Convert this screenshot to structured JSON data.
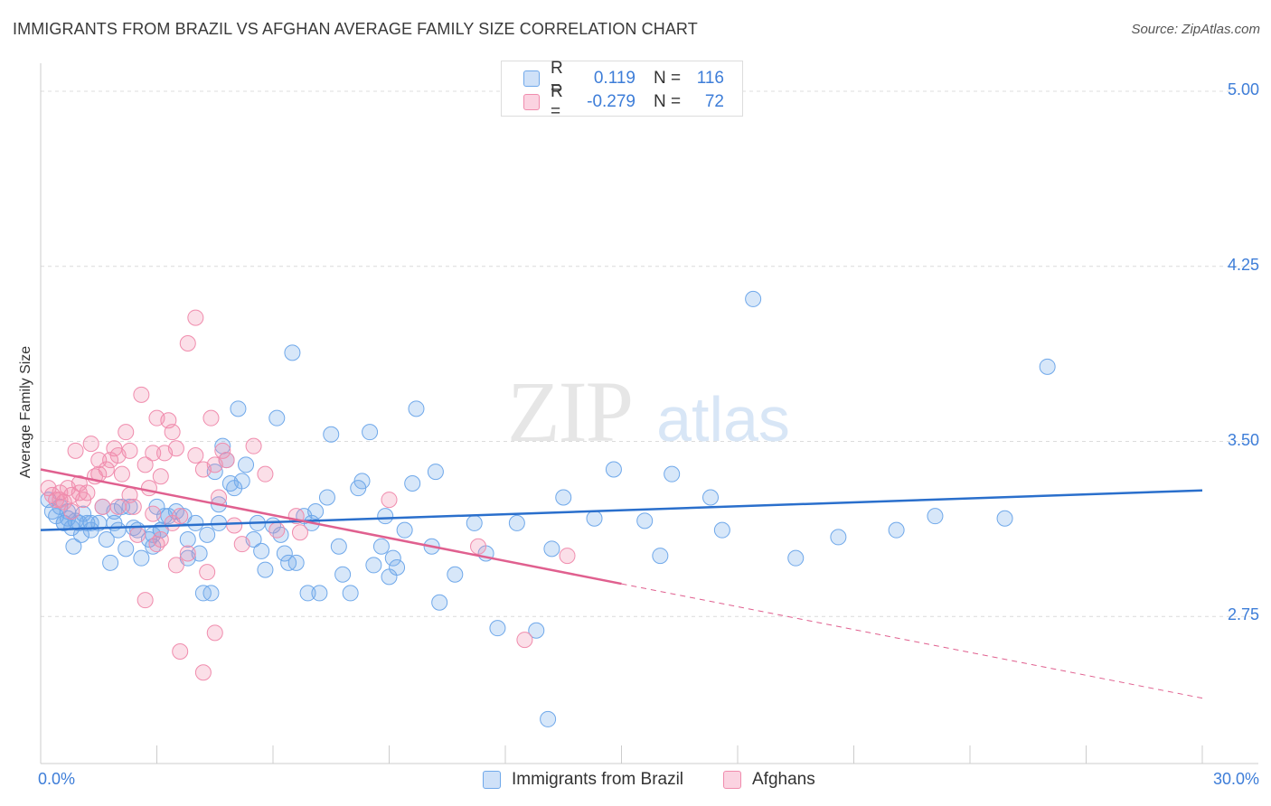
{
  "title": "IMMIGRANTS FROM BRAZIL VS AFGHAN AVERAGE FAMILY SIZE CORRELATION CHART",
  "source": "Source: ZipAtlas.com",
  "watermark": {
    "zip": "ZIP",
    "atlas": "atlas"
  },
  "legend_stats": [
    {
      "r_label": "R =",
      "r_value": "0.119",
      "n_label": "N =",
      "n_value": "116",
      "color": "#6fa8ea"
    },
    {
      "r_label": "R =",
      "r_value": "-0.279",
      "n_label": "N =",
      "n_value": "72",
      "color": "#f08cad"
    }
  ],
  "legend_series": [
    {
      "label": "Immigrants from Brazil",
      "color": "#6fa8ea"
    },
    {
      "label": "Afghans",
      "color": "#f08cad"
    }
  ],
  "chart_data": {
    "type": "scatter",
    "title": "IMMIGRANTS FROM BRAZIL VS AFGHAN AVERAGE FAMILY SIZE CORRELATION CHART",
    "ylabel": "Average Family Size",
    "xlabel": "",
    "xlim": [
      0,
      30
    ],
    "ylim": [
      2.12,
      5.12
    ],
    "x_tick_labels": [
      "0.0%",
      "30.0%"
    ],
    "y_ticks": [
      2.75,
      3.5,
      4.25,
      5.0
    ],
    "y_tick_labels": [
      "2.75",
      "3.50",
      "4.25",
      "5.00"
    ],
    "grid": true,
    "legend_placement": "bottom",
    "series": [
      {
        "name": "Immigrants from Brazil",
        "color": "#6fa8ea",
        "line_color": "#2a6fcc",
        "trend": {
          "x": [
            0,
            30
          ],
          "y": [
            3.12,
            3.29
          ]
        },
        "points": [
          [
            0.2,
            3.25
          ],
          [
            0.3,
            3.2
          ],
          [
            0.4,
            3.18
          ],
          [
            0.5,
            3.22
          ],
          [
            0.6,
            3.15
          ],
          [
            0.7,
            3.2
          ],
          [
            0.8,
            3.13
          ],
          [
            0.9,
            3.16
          ],
          [
            1.0,
            3.15
          ],
          [
            0.85,
            3.05
          ],
          [
            1.05,
            3.1
          ],
          [
            1.2,
            3.15
          ],
          [
            1.3,
            3.12
          ],
          [
            1.5,
            3.15
          ],
          [
            1.6,
            3.22
          ],
          [
            1.7,
            3.08
          ],
          [
            1.8,
            2.98
          ],
          [
            1.9,
            3.2
          ],
          [
            1.9,
            3.15
          ],
          [
            2.0,
            3.12
          ],
          [
            2.1,
            3.22
          ],
          [
            2.2,
            3.04
          ],
          [
            2.3,
            3.22
          ],
          [
            2.5,
            3.12
          ],
          [
            2.6,
            3.0
          ],
          [
            2.8,
            3.08
          ],
          [
            2.9,
            3.05
          ],
          [
            2.9,
            3.1
          ],
          [
            3.0,
            3.22
          ],
          [
            3.1,
            3.12
          ],
          [
            3.3,
            3.18
          ],
          [
            3.5,
            3.2
          ],
          [
            3.7,
            3.18
          ],
          [
            3.8,
            3.08
          ],
          [
            3.8,
            3.0
          ],
          [
            4.0,
            3.15
          ],
          [
            4.1,
            3.02
          ],
          [
            4.2,
            2.85
          ],
          [
            4.3,
            3.1
          ],
          [
            4.4,
            2.85
          ],
          [
            4.5,
            3.37
          ],
          [
            4.6,
            3.15
          ],
          [
            4.7,
            3.48
          ],
          [
            4.8,
            3.42
          ],
          [
            4.9,
            3.32
          ],
          [
            5.0,
            3.3
          ],
          [
            5.1,
            3.64
          ],
          [
            5.2,
            3.33
          ],
          [
            5.3,
            3.4
          ],
          [
            5.5,
            3.08
          ],
          [
            5.6,
            3.15
          ],
          [
            5.8,
            2.95
          ],
          [
            6.0,
            3.14
          ],
          [
            6.1,
            3.6
          ],
          [
            6.2,
            3.1
          ],
          [
            6.3,
            3.02
          ],
          [
            6.4,
            2.98
          ],
          [
            6.6,
            2.98
          ],
          [
            6.8,
            3.18
          ],
          [
            6.9,
            2.85
          ],
          [
            7.0,
            3.15
          ],
          [
            7.2,
            2.85
          ],
          [
            7.4,
            3.26
          ],
          [
            7.5,
            3.53
          ],
          [
            7.7,
            3.05
          ],
          [
            7.8,
            2.93
          ],
          [
            8.0,
            2.85
          ],
          [
            8.2,
            3.3
          ],
          [
            8.3,
            3.33
          ],
          [
            8.5,
            3.54
          ],
          [
            8.6,
            2.97
          ],
          [
            8.8,
            3.05
          ],
          [
            9.0,
            2.92
          ],
          [
            9.2,
            2.96
          ],
          [
            9.4,
            3.12
          ],
          [
            9.6,
            3.32
          ],
          [
            9.7,
            3.64
          ],
          [
            10.1,
            3.05
          ],
          [
            10.2,
            3.37
          ],
          [
            10.3,
            2.81
          ],
          [
            10.7,
            2.93
          ],
          [
            11.2,
            3.15
          ],
          [
            11.5,
            3.02
          ],
          [
            11.8,
            2.7
          ],
          [
            12.3,
            3.15
          ],
          [
            12.8,
            2.69
          ],
          [
            13.2,
            3.04
          ],
          [
            13.5,
            3.26
          ],
          [
            14.3,
            3.17
          ],
          [
            14.8,
            3.38
          ],
          [
            15.6,
            3.16
          ],
          [
            16.0,
            3.01
          ],
          [
            16.3,
            3.36
          ],
          [
            17.3,
            3.26
          ],
          [
            17.6,
            3.12
          ],
          [
            18.4,
            4.11
          ],
          [
            19.5,
            3.0
          ],
          [
            20.6,
            3.09
          ],
          [
            22.1,
            3.12
          ],
          [
            23.1,
            3.18
          ],
          [
            26.0,
            3.82
          ],
          [
            24.9,
            3.17
          ],
          [
            6.5,
            3.88
          ],
          [
            3.1,
            3.12
          ],
          [
            4.6,
            3.23
          ],
          [
            2.4,
            3.13
          ],
          [
            1.3,
            3.15
          ],
          [
            0.7,
            3.17
          ],
          [
            5.7,
            3.03
          ],
          [
            7.1,
            3.2
          ],
          [
            9.1,
            3.0
          ],
          [
            13.1,
            2.31
          ],
          [
            3.2,
            3.18
          ],
          [
            1.1,
            3.19
          ],
          [
            0.6,
            3.15
          ],
          [
            8.9,
            3.18
          ]
        ]
      },
      {
        "name": "Afghans",
        "color": "#f08cad",
        "line_color": "#e0608f",
        "trend": {
          "x": [
            0,
            15
          ],
          "y": [
            3.38,
            2.89
          ]
        },
        "trend_dashed": {
          "x": [
            15,
            30
          ],
          "y": [
            2.89,
            2.4
          ]
        },
        "points": [
          [
            0.2,
            3.3
          ],
          [
            0.3,
            3.27
          ],
          [
            0.4,
            3.25
          ],
          [
            0.5,
            3.28
          ],
          [
            0.6,
            3.24
          ],
          [
            0.7,
            3.3
          ],
          [
            0.8,
            3.27
          ],
          [
            0.9,
            3.46
          ],
          [
            1.0,
            3.28
          ],
          [
            1.1,
            3.25
          ],
          [
            1.2,
            3.28
          ],
          [
            1.3,
            3.49
          ],
          [
            1.4,
            3.35
          ],
          [
            1.5,
            3.42
          ],
          [
            1.6,
            3.22
          ],
          [
            1.8,
            3.42
          ],
          [
            1.9,
            3.47
          ],
          [
            2.0,
            3.44
          ],
          [
            2.1,
            3.36
          ],
          [
            2.2,
            3.54
          ],
          [
            2.3,
            3.46
          ],
          [
            2.4,
            3.22
          ],
          [
            2.5,
            3.1
          ],
          [
            2.6,
            3.7
          ],
          [
            2.7,
            3.4
          ],
          [
            2.8,
            3.3
          ],
          [
            2.9,
            3.45
          ],
          [
            3.0,
            3.6
          ],
          [
            3.1,
            3.35
          ],
          [
            3.2,
            3.45
          ],
          [
            3.3,
            3.59
          ],
          [
            3.4,
            3.54
          ],
          [
            3.5,
            3.47
          ],
          [
            3.6,
            3.18
          ],
          [
            3.8,
            3.92
          ],
          [
            4.0,
            3.44
          ],
          [
            4.2,
            3.38
          ],
          [
            4.4,
            3.6
          ],
          [
            4.5,
            3.4
          ],
          [
            4.6,
            3.26
          ],
          [
            4.7,
            3.46
          ],
          [
            5.0,
            3.14
          ],
          [
            5.2,
            3.06
          ],
          [
            5.5,
            3.48
          ],
          [
            5.8,
            3.36
          ],
          [
            6.1,
            3.12
          ],
          [
            6.6,
            3.18
          ],
          [
            6.7,
            3.11
          ],
          [
            2.7,
            2.82
          ],
          [
            3.0,
            3.06
          ],
          [
            3.6,
            2.6
          ],
          [
            4.2,
            2.51
          ],
          [
            4.3,
            2.94
          ],
          [
            4.5,
            2.68
          ],
          [
            4.0,
            4.03
          ],
          [
            3.5,
            2.97
          ],
          [
            9.0,
            3.25
          ],
          [
            12.5,
            2.65
          ],
          [
            11.3,
            3.05
          ],
          [
            13.6,
            3.01
          ],
          [
            0.5,
            3.25
          ],
          [
            1.0,
            3.32
          ],
          [
            1.7,
            3.38
          ],
          [
            2.3,
            3.27
          ],
          [
            3.1,
            3.08
          ],
          [
            3.8,
            3.02
          ],
          [
            0.8,
            3.2
          ],
          [
            1.5,
            3.36
          ],
          [
            2.0,
            3.22
          ],
          [
            2.9,
            3.19
          ],
          [
            3.4,
            3.15
          ],
          [
            4.8,
            3.42
          ]
        ]
      }
    ]
  }
}
